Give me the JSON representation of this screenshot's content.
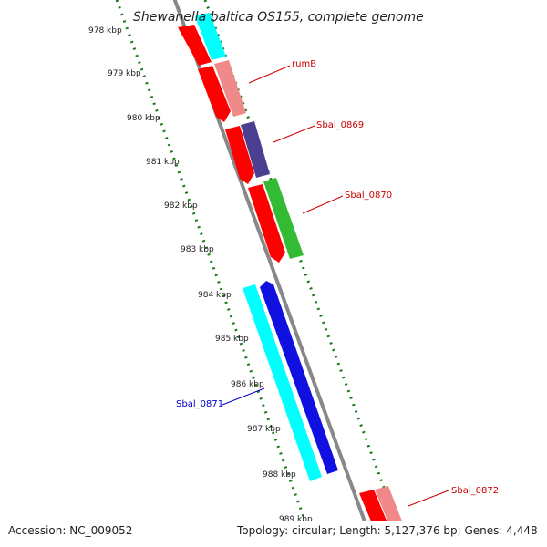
{
  "title": "Shewanella baltica OS155, complete genome",
  "footer": {
    "accession": "Accession: NC_009052",
    "summary": "Topology: circular; Length: 5,127,376 bp; Genes: 4,448"
  },
  "axis": {
    "ticks": [
      "978 kbp",
      "979 kbp",
      "980 kbp",
      "981 kbp",
      "982 kbp",
      "983 kbp",
      "984 kbp",
      "985 kbp",
      "986 kbp",
      "987 kbp",
      "988 kbp",
      "989 kbp"
    ]
  },
  "gene_labels": {
    "rumB": "rumB",
    "sbal0869": "Sbal_0869",
    "sbal0870": "Sbal_0870",
    "sbal0871": "Sbal_0871",
    "sbal0872": "Sbal_0872"
  },
  "colors": {
    "cds_red": "#ff0000",
    "pink": "#f08a8a",
    "cyan": "#00ffff",
    "navy": "#4b3f8f",
    "green": "#33bb33",
    "blue": "#1010e0",
    "backbone": "#888888",
    "ticks": "#1a7a1a",
    "label_red": "#cc0000",
    "label_blue": "#0000cc"
  }
}
